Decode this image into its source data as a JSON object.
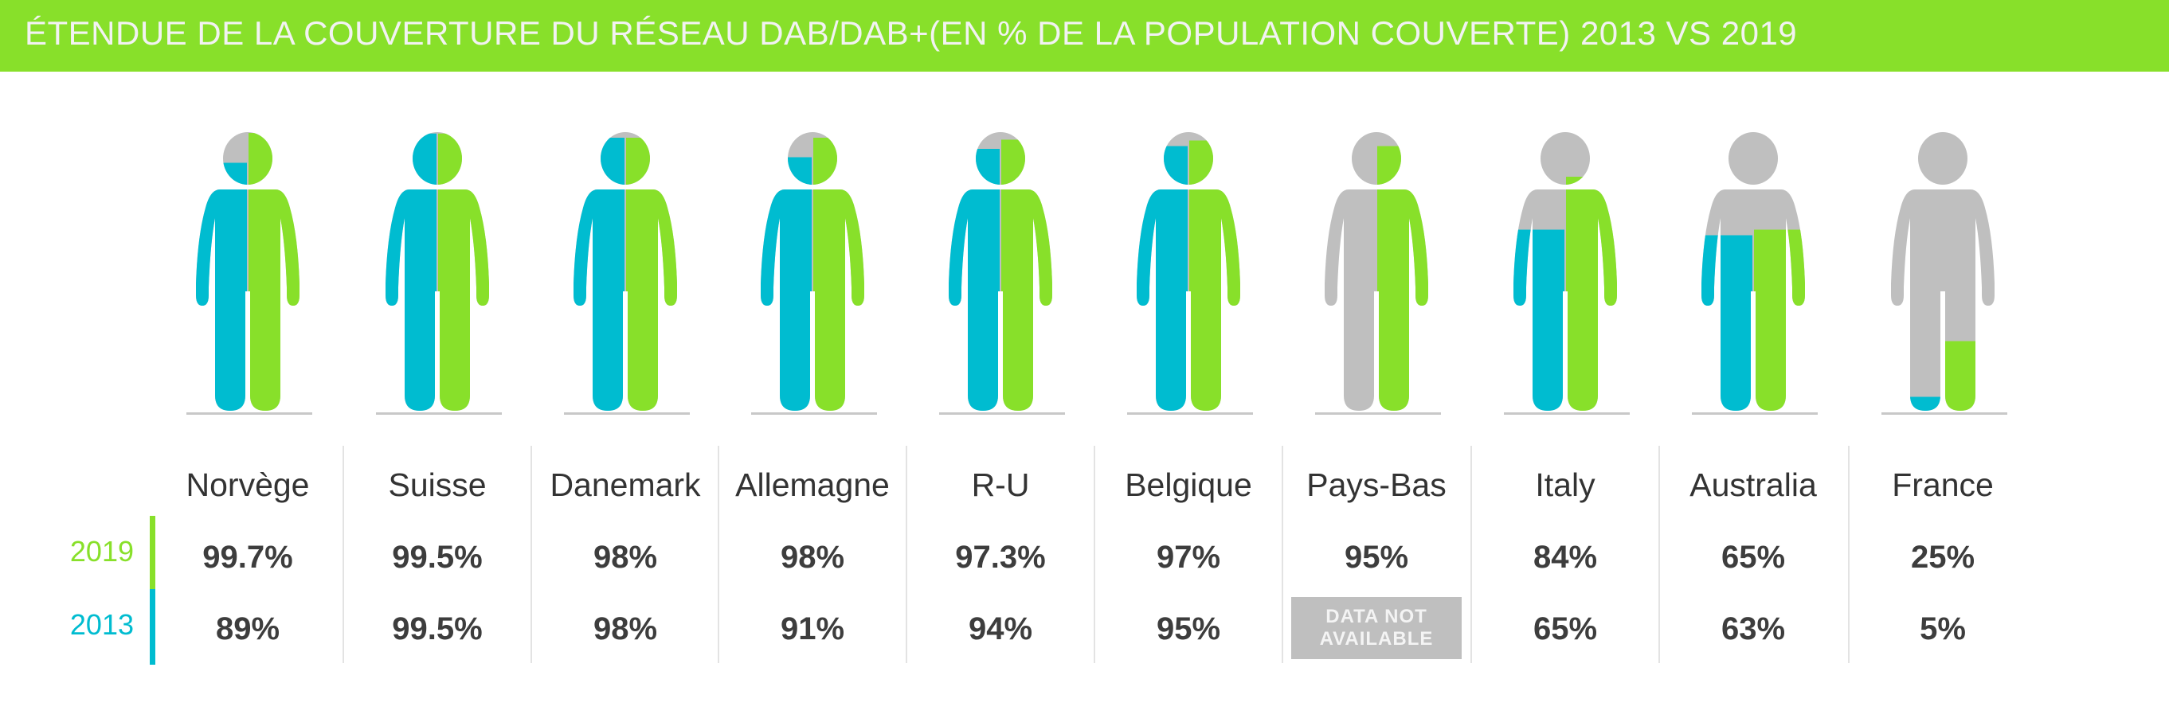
{
  "title": "ÉTENDUE DE LA COUVERTURE DU RÉSEAU DAB/DAB+(EN % DE LA POPULATION COUVERTE) 2013 VS 2019",
  "colors": {
    "y2019": "#88e02a",
    "y2013": "#00bcd0",
    "empty": "#bfbfbf",
    "text": "#3d3d3d"
  },
  "years": {
    "a": "2019",
    "b": "2013"
  },
  "na_label": "DATA NOT AVAILABLE",
  "chart_data": {
    "type": "pictogram",
    "title": "ÉTENDUE DE LA COUVERTURE DU RÉSEAU DAB/DAB+(EN % DE LA POPULATION COUVERTE) 2013 VS 2019",
    "categories": [
      "Norvège",
      "Suisse",
      "Danemark",
      "Allemagne",
      "R-U",
      "Belgique",
      "Pays-Bas",
      "Italy",
      "Australia",
      "France"
    ],
    "series": [
      {
        "name": "2019",
        "values": [
          99.7,
          99.5,
          98,
          98,
          97.3,
          97,
          95,
          84,
          65,
          25
        ],
        "labels": [
          "99.7%",
          "99.5%",
          "98%",
          "98%",
          "97.3%",
          "97%",
          "95%",
          "84%",
          "65%",
          "25%"
        ]
      },
      {
        "name": "2013",
        "values": [
          89,
          99.5,
          98,
          91,
          94,
          95,
          null,
          65,
          63,
          5
        ],
        "labels": [
          "89%",
          "99.5%",
          "98%",
          "91%",
          "94%",
          "95%",
          null,
          "65%",
          "63%",
          "5%"
        ]
      }
    ],
    "ylim": [
      0,
      100
    ]
  }
}
